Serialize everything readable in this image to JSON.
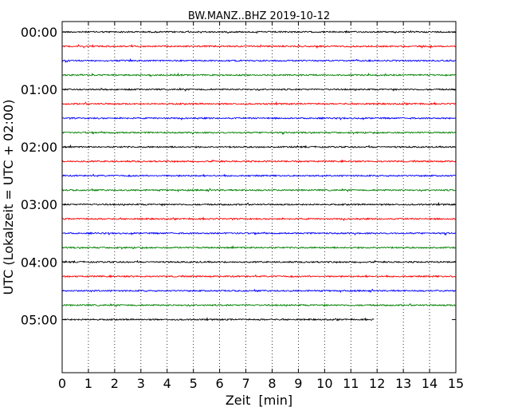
{
  "chart_data": {
    "type": "line",
    "title": "BW.MANZ..BHZ 2019-10-12",
    "xlabel": "Zeit  [min]",
    "ylabel": "UTC (Lokalzeit = UTC + 02:00)",
    "xlim": [
      0,
      15
    ],
    "x_ticks": [
      "0",
      "1",
      "2",
      "3",
      "4",
      "5",
      "6",
      "7",
      "8",
      "9",
      "10",
      "11",
      "12",
      "13",
      "14",
      "15"
    ],
    "y_ticks": [
      "00:00",
      "01:00",
      "02:00",
      "03:00",
      "04:00",
      "05:00"
    ],
    "grid": "vertical dotted lines at each minute",
    "trace_interval_minutes": 15,
    "colors": [
      "#000000",
      "#ff0000",
      "#0000ff",
      "#008000"
    ],
    "traces": [
      {
        "start": "00:00",
        "color": "#000000",
        "end_min": 15
      },
      {
        "start": "00:15",
        "color": "#ff0000",
        "end_min": 15
      },
      {
        "start": "00:30",
        "color": "#0000ff",
        "end_min": 15
      },
      {
        "start": "00:45",
        "color": "#008000",
        "end_min": 15
      },
      {
        "start": "01:00",
        "color": "#000000",
        "end_min": 15
      },
      {
        "start": "01:15",
        "color": "#ff0000",
        "end_min": 15
      },
      {
        "start": "01:30",
        "color": "#0000ff",
        "end_min": 15
      },
      {
        "start": "01:45",
        "color": "#008000",
        "end_min": 15
      },
      {
        "start": "02:00",
        "color": "#000000",
        "end_min": 15
      },
      {
        "start": "02:15",
        "color": "#ff0000",
        "end_min": 15
      },
      {
        "start": "02:30",
        "color": "#0000ff",
        "end_min": 15
      },
      {
        "start": "02:45",
        "color": "#008000",
        "end_min": 15
      },
      {
        "start": "03:00",
        "color": "#000000",
        "end_min": 15
      },
      {
        "start": "03:15",
        "color": "#ff0000",
        "end_min": 15
      },
      {
        "start": "03:30",
        "color": "#0000ff",
        "end_min": 15
      },
      {
        "start": "03:45",
        "color": "#008000",
        "end_min": 15
      },
      {
        "start": "04:00",
        "color": "#000000",
        "end_min": 15
      },
      {
        "start": "04:15",
        "color": "#ff0000",
        "end_min": 15
      },
      {
        "start": "04:30",
        "color": "#0000ff",
        "end_min": 15
      },
      {
        "start": "04:45",
        "color": "#008000",
        "end_min": 15
      },
      {
        "start": "05:00",
        "color": "#000000",
        "end_min": 11.9
      }
    ]
  }
}
